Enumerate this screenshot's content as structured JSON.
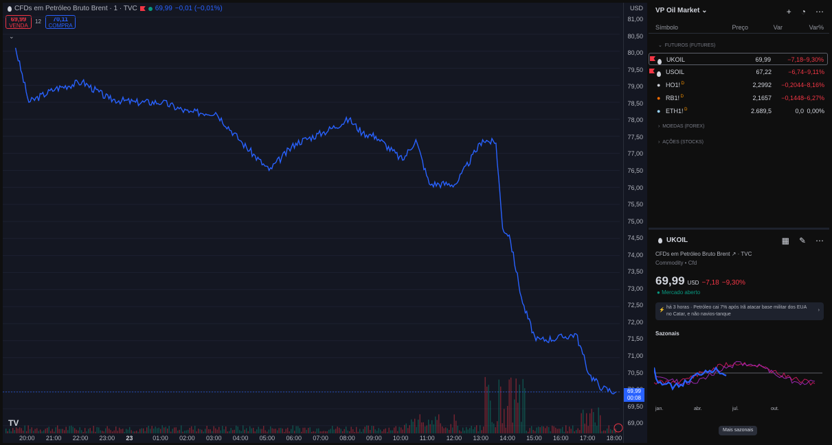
{
  "chart_header": {
    "title": "CFDs em Petróleo Bruto Brent · 1 · TVC",
    "last": "69,99",
    "change": "−0,01 (−0,01%)",
    "sell_price": "69,99",
    "sell_label": "VENDA",
    "spread": "12",
    "buy_price": "70,11",
    "buy_label": "COMPRA",
    "currency": "USD",
    "current_price": "69,99",
    "countdown": "00:08",
    "logo": "TV"
  },
  "y_axis": [
    "81,00",
    "80,50",
    "80,00",
    "79,50",
    "79,00",
    "78,50",
    "78,00",
    "77,50",
    "77,00",
    "76,50",
    "76,00",
    "75,50",
    "75,00",
    "74,50",
    "74,00",
    "73,50",
    "73,00",
    "72,50",
    "72,00",
    "71,50",
    "71,00",
    "70,50",
    "70,00",
    "69,50",
    "69,00"
  ],
  "x_axis": [
    "20:00",
    "21:00",
    "22:00",
    "23:00",
    "23",
    "01:00",
    "02:00",
    "03:00",
    "04:00",
    "05:00",
    "06:00",
    "07:00",
    "08:00",
    "09:00",
    "10:00",
    "11:00",
    "12:00",
    "13:00",
    "14:00",
    "15:00",
    "16:00",
    "17:00",
    "18:00"
  ],
  "chart_data": {
    "type": "line",
    "series": [
      {
        "x": [
          "19:30",
          "20:00",
          "21:00",
          "22:00",
          "23:00",
          "00:00",
          "01:00",
          "02:00",
          "03:00",
          "04:00",
          "05:00",
          "06:00",
          "07:00",
          "08:00",
          "08:30",
          "09:00",
          "10:00",
          "10:30",
          "11:00",
          "12:00",
          "13:00",
          "13:30",
          "13:45",
          "14:00",
          "14:30",
          "15:00",
          "16:00",
          "16:30",
          "17:00",
          "17:30",
          "18:00"
        ],
        "y": [
          80.1,
          78.5,
          78.9,
          79.1,
          78.6,
          78.5,
          78.5,
          78.2,
          78.2,
          77.3,
          76.5,
          77.3,
          77.6,
          78.0,
          77.6,
          77.5,
          76.8,
          77.4,
          76.1,
          76.1,
          77.4,
          77.3,
          74.8,
          74.6,
          72.6,
          71.5,
          71.6,
          71.7,
          70.5,
          70.1,
          69.99
        ]
      }
    ],
    "volume": true,
    "ylim": [
      69.0,
      81.2
    ]
  },
  "watchlist": {
    "title": "VP Oil Market",
    "columns": {
      "symbol": "Símbolo",
      "price": "Preço",
      "change": "Var",
      "percent": "Var%"
    },
    "section_futures": "FUTUROS (FUTURES)",
    "rows": [
      {
        "symbol": "UKOIL",
        "price": "69,99",
        "change": "−7,18",
        "percent": "−9,30%",
        "flag": true,
        "d": ""
      },
      {
        "symbol": "USOIL",
        "price": "67,22",
        "change": "−6,74",
        "percent": "−9,11%",
        "flag": true,
        "d": ""
      },
      {
        "symbol": "HO1!",
        "price": "2,2992",
        "change": "−0,2044",
        "percent": "−8,16%",
        "flag": false,
        "d": "D"
      },
      {
        "symbol": "RB1!",
        "price": "2,1657",
        "change": "−0,1448",
        "percent": "−6,27%",
        "flag": false,
        "d": "D"
      },
      {
        "symbol": "ETH1!",
        "price": "2.689,5",
        "change": "0,0",
        "percent": "0,00%",
        "flag": false,
        "d": "D"
      }
    ],
    "section_forex": "MOEDAS (FOREX)",
    "section_stocks": "AÇÕES (STOCKS)"
  },
  "details": {
    "symbol": "UKOIL",
    "description": "CFDs em Petróleo Bruto Brent",
    "source": "TVC",
    "category": "Commodity • Cfd",
    "price": "69,99",
    "currency": "USD",
    "change": "−7,18",
    "percent": "−9,30%",
    "status": "Mercado aberto",
    "news": "há 3 horas · Petróleo cai 7% após Irã atacar base militar dos EUA no Catar, e não navios-tanque",
    "seasonals_title": "Sazonais",
    "months": [
      "jan.",
      "abr.",
      "jul.",
      "out."
    ],
    "more_button": "Mais sazonais"
  },
  "colors": {
    "accent": "#2962ff",
    "down": "#f23645",
    "up": "#089981",
    "bg": "#141722"
  },
  "icons": [
    "drop-icon",
    "flag-icon",
    "plus-icon",
    "clock-icon",
    "more-icon",
    "grid-icon",
    "edit-icon",
    "chevron-right-icon"
  ]
}
